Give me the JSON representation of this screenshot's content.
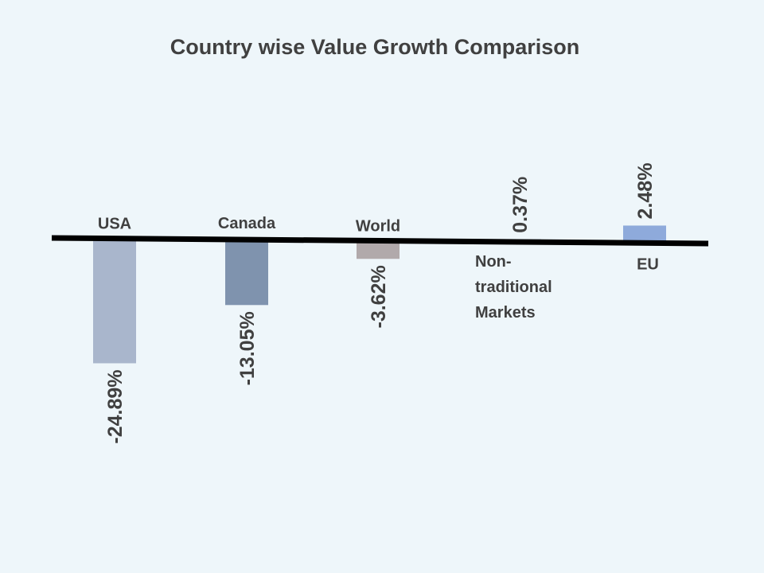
{
  "chart_data": {
    "type": "bar",
    "title": "Country wise Value Growth Comparison",
    "xlabel": "",
    "ylabel": "",
    "categories": [
      "USA",
      "Canada",
      "World",
      "Non-traditional Markets",
      "EU"
    ],
    "category_lines": [
      [
        "USA"
      ],
      [
        "Canada"
      ],
      [
        "World"
      ],
      [
        "Non-",
        "traditional",
        "Markets"
      ],
      [
        "EU"
      ]
    ],
    "values": [
      -24.89,
      -13.05,
      -3.62,
      0.37,
      2.48
    ],
    "data_labels": [
      "-24.89%",
      "-13.05%",
      "-3.62%",
      "0.37%",
      "2.48%"
    ],
    "colors": [
      "#a9b6cc",
      "#7f93ae",
      "#b1a9ab",
      "#7d8fab",
      "#8eaadb"
    ],
    "grid": false,
    "legend": "none"
  }
}
